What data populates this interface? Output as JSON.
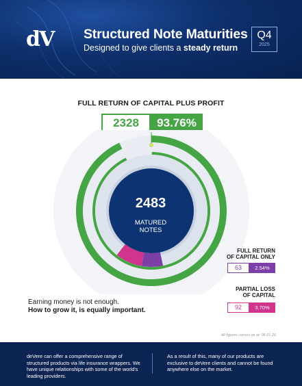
{
  "header": {
    "logo": "dV",
    "title": "Structured Note Maturities",
    "subtitle_prefix": "Designed to give clients a ",
    "subtitle_bold": "steady return",
    "quarter": "Q4",
    "year": "2025"
  },
  "headline": "FULL RETURN OF CAPITAL PLUS PROFIT",
  "stat": {
    "count": "2328",
    "percent": "93.76%"
  },
  "center": {
    "value": "2483",
    "label_line1": "MATURED",
    "label_line2": "NOTES"
  },
  "legend": {
    "capital_only": {
      "title_line1": "FULL RETURN",
      "title_line2": "OF CAPITAL ONLY",
      "count": "63",
      "percent": "2.54%"
    },
    "partial_loss": {
      "title_line1": "PARTIAL LOSS",
      "title_line2": "OF CAPITAL",
      "count": "92",
      "percent": "3.70%"
    }
  },
  "tagline": {
    "line1": "Earning money is not enough.",
    "line2": "How to grow it, is equally important."
  },
  "footnote": "All figures correct as at: 06.01.26",
  "footer": {
    "left": "deVere can offer a comprehensive range of structured products via life insurance wrappers. We have unique relationships with some of the world's leading providers.",
    "right": "As a result of this, many of our products are exclusive to deVere clients and cannot be found anywhere else on the market."
  },
  "colors": {
    "green": "#45a544",
    "purple": "#7c3fa8",
    "magenta": "#d0348c",
    "navy": "#0c2452",
    "center": "#0e3372"
  },
  "chart_data": {
    "type": "pie",
    "variant": "donut",
    "total": 2483,
    "series": [
      {
        "name": "FULL RETURN OF CAPITAL PLUS PROFIT",
        "value": 2328,
        "percent": 93.76,
        "color": "#45a544"
      },
      {
        "name": "FULL RETURN OF CAPITAL ONLY",
        "value": 63,
        "percent": 2.54,
        "color": "#7c3fa8"
      },
      {
        "name": "PARTIAL LOSS OF CAPITAL",
        "value": 92,
        "percent": 3.7,
        "color": "#d0348c"
      }
    ]
  }
}
